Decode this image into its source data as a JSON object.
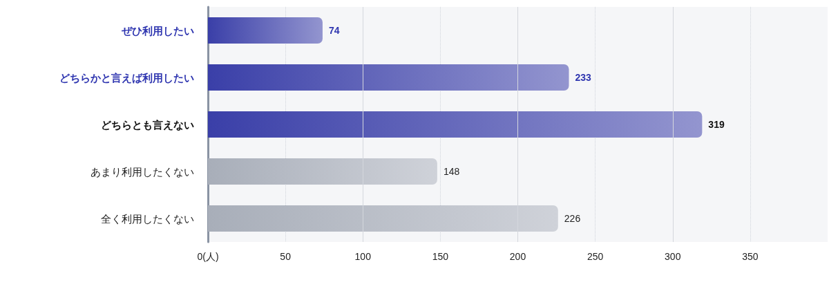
{
  "chart_data": {
    "type": "bar",
    "orientation": "horizontal",
    "categories": [
      "ぜひ利用したい",
      "どちらかと言えば利用したい",
      "どちらとも言えない",
      "あまり利用したくない",
      "全く利用したくない"
    ],
    "values": [
      74,
      233,
      319,
      148,
      226
    ],
    "colors": [
      "#3a3fa8",
      "#3a3fa8",
      "#3a3fa8",
      "#a8aeb9",
      "#a8aeb9"
    ],
    "xlim": [
      0,
      400
    ],
    "xticks": [
      {
        "value": 0,
        "label": "0(人)"
      },
      50,
      100,
      150,
      200,
      250,
      300,
      350
    ],
    "grid": "x",
    "data_labels": true
  }
}
